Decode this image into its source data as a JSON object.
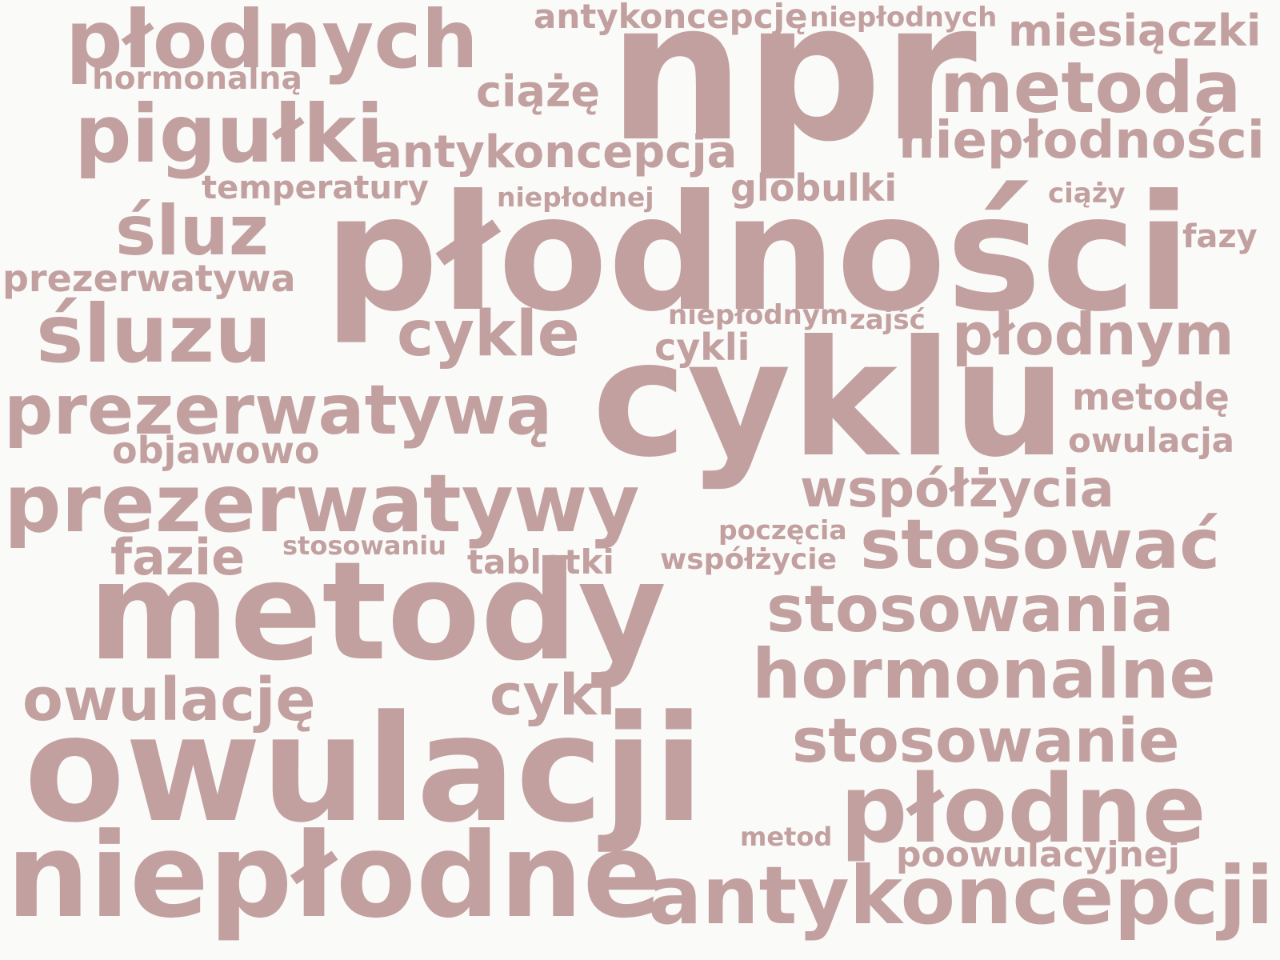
{
  "color": "#c2a0a0",
  "background": "#fafaf8",
  "words": [
    "płodnych",
    "hormonalną",
    "antykoncepcję",
    "niepłodnych",
    "miesiączki",
    "npr",
    "metoda",
    "ciążę",
    "pigułki",
    "antykoncepcja",
    "niepłodności",
    "temperatury",
    "niepłodnej",
    "globulki",
    "ciąży",
    "śluz",
    "płodności",
    "fazy",
    "prezerwatywa",
    "śluzu",
    "cykle",
    "niepłodnym",
    "zajść",
    "cykli",
    "płodnym",
    "cyklu",
    "prezerwatywą",
    "metodę",
    "owulacja",
    "objawowo",
    "prezerwatywy",
    "współżycia",
    "poczęcia",
    "stosowaniu",
    "fazie",
    "tabletki",
    "współżycie",
    "stosować",
    "metody",
    "stosowania",
    "owulację",
    "cykl",
    "hormonalne",
    "stosowanie",
    "owulacji",
    "płodne",
    "metod",
    "poowulacyjnej",
    "niepłodne",
    "antykoncepcji"
  ]
}
